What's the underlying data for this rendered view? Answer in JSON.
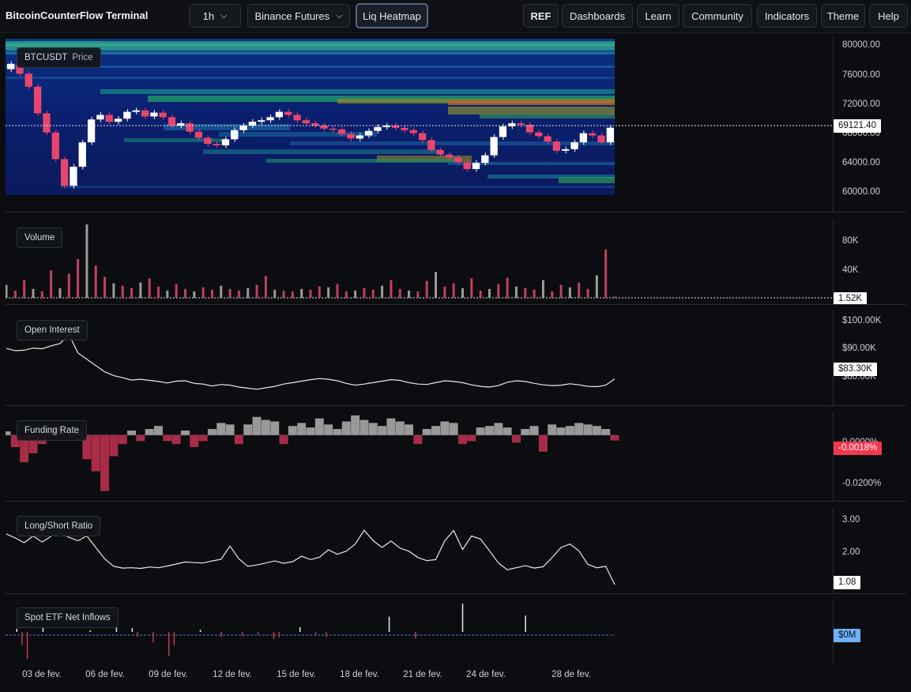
{
  "app": {
    "title": "BitcoinCounterFlow Terminal"
  },
  "toolbar": {
    "timeframe": "1h",
    "exchange": "Binance Futures",
    "heatmap": "Liq Heatmap",
    "ref": "REF",
    "dashboards": "Dashboards",
    "learn": "Learn",
    "community": "Community",
    "indicators": "Indicators",
    "theme": "Theme",
    "help": "Help"
  },
  "price": {
    "symbol": "BTCUSDT",
    "label": "Price",
    "ticks": [
      "80000.00",
      "76000.00",
      "72000.00",
      "68000.00",
      "64000.00",
      "60000.00"
    ],
    "current": "69121.40"
  },
  "volume": {
    "label": "Volume",
    "ticks": [
      "80K",
      "40K"
    ],
    "current": "1.52K"
  },
  "open_interest": {
    "label": "Open Interest",
    "ticks": [
      "$100.00K",
      "$90.00K",
      "$80.00K"
    ],
    "current": "$83.30K"
  },
  "funding": {
    "label": "Funding Rate",
    "ticks": [
      "0.0000%",
      "-0.0200%"
    ],
    "current": "-0.0018%"
  },
  "long_short": {
    "label": "Long/Short Ratio",
    "ticks": [
      "3.00",
      "2.00"
    ],
    "current": "1.08"
  },
  "etf": {
    "label": "Spot ETF Net Inflows",
    "current": "$0M"
  },
  "xaxis": {
    "ticks": [
      "03 de fev.",
      "06 de fev.",
      "09 de fev.",
      "12 de fev.",
      "15 de fev.",
      "18 de fev.",
      "21 de fev.",
      "24 de fev.",
      "28 de fev."
    ]
  },
  "colors": {
    "up": "#ffffff",
    "down": "#e8456e",
    "vol_down": "#c2405f",
    "vol_up": "#9b9b9b",
    "accent": "#4a6a8f",
    "etf_pos": "#e8e8e8",
    "etf_neg": "#c23a52"
  },
  "chart_data": [
    {
      "type": "line",
      "title": "Price",
      "ylim": [
        58000,
        81000
      ],
      "y": [
        76800,
        77500,
        76200,
        74500,
        71000,
        68500,
        65000,
        61500,
        64000,
        67200,
        70200,
        70800,
        69900,
        70300,
        71200,
        71400,
        70600,
        71100,
        70500,
        69400,
        69700,
        68600,
        67800,
        67000,
        66800,
        67600,
        68800,
        69400,
        69900,
        70100,
        70500,
        71200,
        70800,
        70100,
        69700,
        69400,
        69000,
        68900,
        68300,
        67700,
        68100,
        68700,
        69200,
        69400,
        69100,
        68800,
        68400,
        67500,
        66200,
        65600,
        65200,
        64600,
        63700,
        64500,
        65500,
        67900,
        69300,
        69700,
        69500,
        68500,
        68000,
        67300,
        66100,
        66300,
        67200,
        68400,
        68100,
        67200,
        69121.4
      ]
    },
    {
      "type": "bar",
      "title": "Volume",
      "ylim": [
        0,
        98000
      ],
      "values": [
        16000,
        9000,
        22000,
        11000,
        8000,
        34000,
        12000,
        30000,
        48000,
        91000,
        40000,
        26000,
        18000,
        15000,
        12000,
        19000,
        24000,
        14000,
        9000,
        17000,
        11000,
        8000,
        13000,
        10000,
        15000,
        11000,
        9000,
        12000,
        16000,
        27000,
        10000,
        9000,
        8000,
        11000,
        10000,
        14000,
        13000,
        17000,
        8000,
        9000,
        12000,
        10000,
        15000,
        22000,
        11000,
        9000,
        8000,
        21000,
        32000,
        14000,
        18000,
        12000,
        24000,
        9000,
        11000,
        17000,
        25000,
        14000,
        12000,
        10000,
        22000,
        8000,
        16000,
        13000,
        19000,
        11000,
        28000,
        60000,
        1520
      ]
    },
    {
      "type": "line",
      "title": "Open Interest",
      "ylim": [
        76000,
        101500
      ],
      "y": [
        91500,
        90900,
        91000,
        91600,
        91400,
        92200,
        92800,
        95200,
        90300,
        88600,
        86900,
        85200,
        84200,
        83600,
        83000,
        83200,
        82900,
        82600,
        82200,
        82700,
        82800,
        82100,
        81900,
        81400,
        81800,
        81600,
        81100,
        80800,
        80500,
        80900,
        81300,
        81900,
        82300,
        82700,
        83100,
        83400,
        83200,
        82800,
        82100,
        81600,
        81900,
        82300,
        82700,
        83100,
        82900,
        82300,
        81900,
        81800,
        82300,
        82800,
        82600,
        82300,
        81700,
        81300,
        81100,
        81500,
        82400,
        82800,
        82600,
        82100,
        81700,
        81500,
        81600,
        82000,
        81700,
        81300,
        81200,
        81600,
        83300
      ]
    },
    {
      "type": "bar",
      "title": "Funding Rate (%)",
      "ylim": [
        -0.022,
        0.0075
      ],
      "values": [
        0.0012,
        -0.004,
        -0.009,
        -0.006,
        -0.003,
        0.0025,
        0.003,
        -0.001,
        0.001,
        -0.008,
        -0.012,
        -0.0185,
        -0.007,
        -0.003,
        0.0015,
        -0.002,
        0.002,
        0.003,
        -0.002,
        -0.003,
        0.0015,
        -0.004,
        -0.002,
        0.002,
        0.004,
        0.0035,
        -0.003,
        0.0035,
        0.006,
        0.005,
        0.0045,
        -0.003,
        0.003,
        0.004,
        0.0025,
        0.0055,
        0.0035,
        0.002,
        0.0045,
        0.0065,
        0.005,
        0.004,
        0.003,
        0.0055,
        0.0045,
        0.0035,
        -0.003,
        0.002,
        0.003,
        0.0045,
        0.004,
        -0.003,
        -0.002,
        0.0025,
        0.003,
        0.004,
        0.0025,
        -0.0025,
        0.002,
        0.003,
        -0.0055,
        0.0035,
        0.0025,
        0.003,
        0.004,
        0.0035,
        0.003,
        0.002,
        -0.0018
      ]
    },
    {
      "type": "line",
      "title": "Long/Short Ratio",
      "ylim": [
        0.8,
        3.35
      ],
      "y": [
        2.58,
        2.46,
        2.32,
        2.52,
        2.34,
        2.51,
        2.62,
        2.48,
        2.38,
        2.52,
        2.18,
        1.84,
        1.62,
        1.57,
        1.58,
        1.56,
        1.6,
        1.58,
        1.63,
        1.69,
        1.75,
        1.73,
        1.72,
        1.78,
        1.83,
        2.22,
        1.84,
        1.62,
        1.66,
        1.72,
        1.78,
        1.71,
        1.76,
        1.92,
        1.82,
        1.89,
        2.11,
        1.98,
        2.07,
        2.28,
        2.69,
        2.38,
        2.18,
        2.37,
        2.16,
        2.07,
        1.88,
        1.79,
        1.82,
        2.38,
        2.68,
        2.12,
        2.52,
        2.43,
        2.08,
        1.72,
        1.52,
        1.58,
        1.64,
        1.57,
        1.61,
        1.88,
        2.18,
        2.28,
        2.08,
        1.68,
        1.58,
        1.62,
        1.08
      ]
    },
    {
      "type": "bar",
      "title": "Spot ETF Net Inflows ($M)",
      "ylim": [
        -290,
        290
      ],
      "values": [
        0,
        0,
        30,
        -120,
        -250,
        0,
        0,
        45,
        0,
        0,
        0,
        0,
        0,
        0,
        0,
        0,
        15,
        0,
        0,
        0,
        0,
        50,
        0,
        0,
        35,
        -45,
        0,
        0,
        -95,
        0,
        0,
        -220,
        -120,
        0,
        0,
        0,
        0,
        20,
        0,
        0,
        0,
        -45,
        0,
        0,
        0,
        -35,
        0,
        0,
        -25,
        0,
        0,
        -65,
        -50,
        0,
        0,
        0,
        45,
        0,
        0,
        -30,
        0,
        -45,
        0,
        0,
        0,
        0,
        0,
        0,
        0,
        0,
        0,
        0,
        0,
        140,
        0,
        0,
        0,
        0,
        -60,
        0,
        0,
        0,
        0,
        0,
        0,
        0,
        0,
        260,
        0,
        0,
        0,
        0,
        0,
        0,
        0,
        0,
        0,
        0,
        0,
        150,
        0,
        0,
        0,
        0,
        0,
        0,
        0,
        0,
        0,
        0,
        0,
        0,
        0,
        0,
        0,
        0,
        0
      ]
    }
  ]
}
